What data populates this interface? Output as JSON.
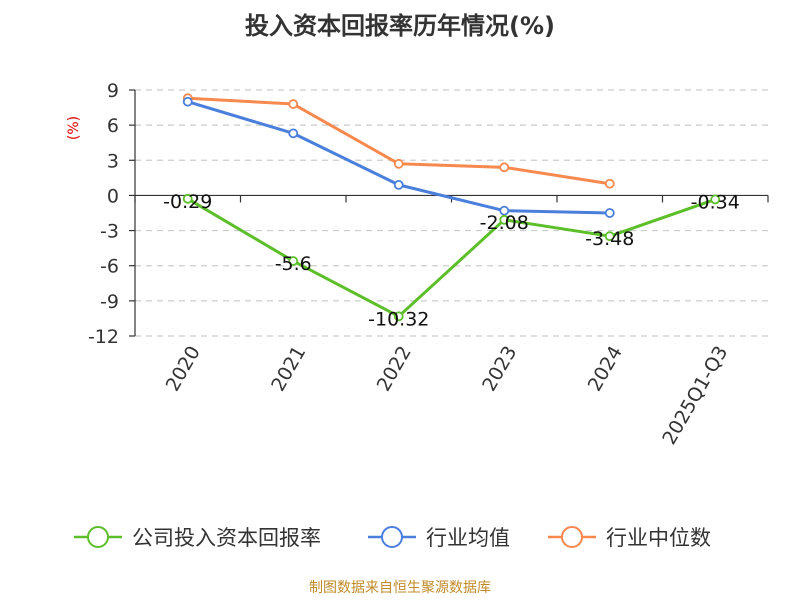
{
  "chart_data": {
    "type": "line",
    "title": "投入资本回报率历年情况(%)",
    "ylabel": "(%)",
    "xlabel": "",
    "categories": [
      "2020",
      "2021",
      "2022",
      "2023",
      "2024",
      "2025Q1-Q3"
    ],
    "ylim": [
      -12,
      9
    ],
    "yticks": [
      9,
      6,
      3,
      0,
      -3,
      -6,
      -9,
      -12
    ],
    "grid": true,
    "legend_position": "bottom",
    "series": [
      {
        "name": "公司投入资本回报率",
        "color": "#5cbf2a",
        "values": [
          -0.29,
          -5.6,
          -10.32,
          -2.08,
          -3.48,
          -0.34
        ],
        "labels": [
          "-0.29",
          "-5.6",
          "-10.32",
          "-2.08",
          "-3.48",
          "-0.34"
        ]
      },
      {
        "name": "行业均值",
        "color": "#4a7fdc",
        "values": [
          8.0,
          5.3,
          0.9,
          -1.3,
          -1.5,
          null
        ]
      },
      {
        "name": "行业中位数",
        "color": "#f7894f",
        "values": [
          8.3,
          7.8,
          2.7,
          2.4,
          1.0,
          null
        ]
      }
    ]
  },
  "source": "制图数据来自恒生聚源数据库"
}
